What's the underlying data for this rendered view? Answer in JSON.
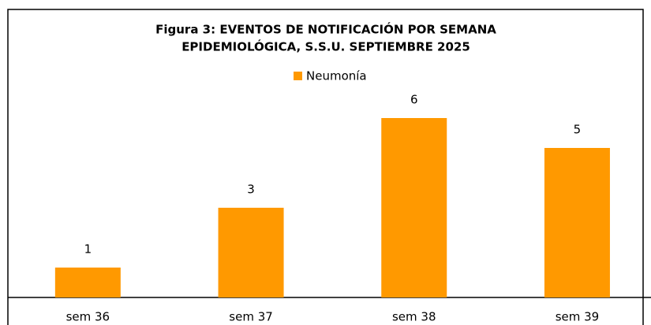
{
  "chart_data": {
    "type": "bar",
    "title": [
      "Figura 3: EVENTOS DE NOTIFICACIÓN POR SEMANA",
      "EPIDEMIOLÓGICA, S.S.U. SEPTIEMBRE 2025"
    ],
    "categories": [
      "sem 36",
      "sem 37",
      "sem 38",
      "sem 39"
    ],
    "series": [
      {
        "name": "Neumonía",
        "color": "#ff9900",
        "values": [
          1,
          3,
          6,
          5
        ]
      }
    ]
  }
}
